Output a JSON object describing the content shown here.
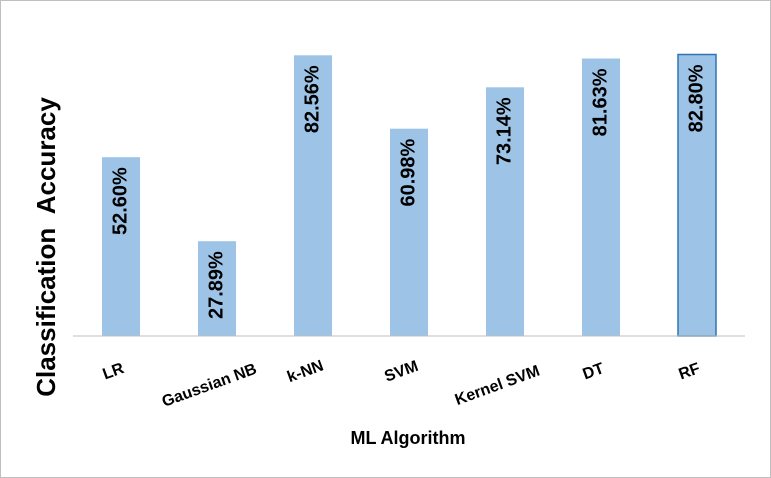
{
  "chart_data": {
    "type": "bar",
    "categories": [
      "LR",
      "Gaussian NB",
      "k-NN",
      "SVM",
      "Kernel SVM",
      "DT",
      "RF"
    ],
    "values": [
      52.6,
      27.89,
      82.56,
      60.98,
      73.14,
      81.63,
      82.8
    ],
    "data_labels": [
      "52.60%",
      "27.89%",
      "82.56%",
      "60.98%",
      "73.14%",
      "81.63%",
      "82.80%"
    ],
    "xlabel": "ML Algorithm",
    "ylabel": "Classification  Accuracy",
    "ylim": [
      0,
      85
    ],
    "grid": false,
    "legend": "none",
    "bar_color": "#9dc3e6",
    "highlight_stroke": "#2e75b6"
  }
}
